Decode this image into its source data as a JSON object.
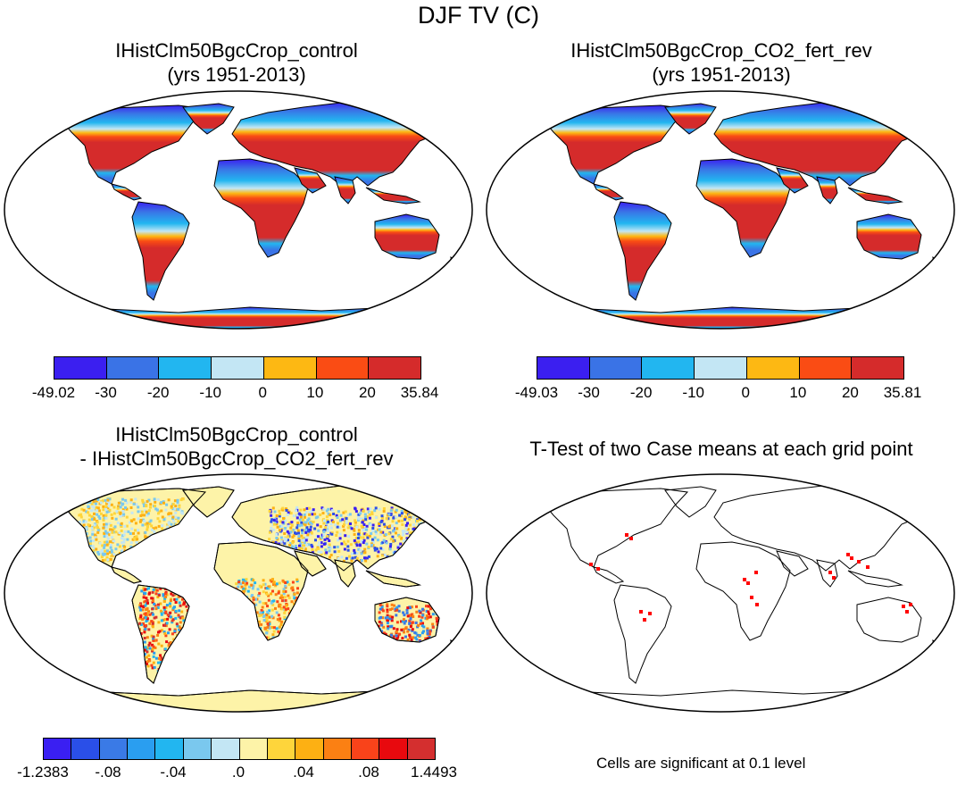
{
  "title": "DJF TV (C)",
  "panels": [
    {
      "id": "control",
      "title_line1": "IHistClm50BgcCrop_control",
      "title_line2": "(yrs 1951-2013)",
      "colorbar": {
        "colors": [
          "#3b1ff0",
          "#3a73e6",
          "#22b6f0",
          "#c3e6f4",
          "#fdb813",
          "#fa4c14",
          "#d52b2b"
        ],
        "labels": [
          "-49.02",
          "-30",
          "-20",
          "-10",
          "0",
          "10",
          "20",
          "35.84"
        ]
      }
    },
    {
      "id": "co2_fert_rev",
      "title_line1": "IHistClm50BgcCrop_CO2_fert_rev",
      "title_line2": "(yrs 1951-2013)",
      "colorbar": {
        "colors": [
          "#3b1ff0",
          "#3a73e6",
          "#22b6f0",
          "#c3e6f4",
          "#fdb813",
          "#fa4c14",
          "#d52b2b"
        ],
        "labels": [
          "-49.03",
          "-30",
          "-20",
          "-10",
          "0",
          "10",
          "20",
          "35.81"
        ]
      }
    },
    {
      "id": "difference",
      "title_line1": "IHistClm50BgcCrop_control",
      "title_line2": "- IHistClm50BgcCrop_CO2_fert_rev",
      "colorbar": {
        "colors": [
          "#3a1ff2",
          "#2a4fe8",
          "#3a7ae6",
          "#2a9ef0",
          "#22b6f0",
          "#7ac8ee",
          "#c3e6f4",
          "#fdf3a8",
          "#fed53b",
          "#fdb013",
          "#fb8013",
          "#f9431a",
          "#e8090e",
          "#d42f2f"
        ],
        "labels": [
          "-1.2383",
          "-.08",
          "-.04",
          ".0",
          ".04",
          ".08",
          "1.4493"
        ]
      }
    },
    {
      "id": "ttest",
      "title_line1": "T-Test of two Case means at each grid point",
      "note": "Cells are significant at 0.1 level",
      "significant_color": "#ff0000"
    }
  ]
}
